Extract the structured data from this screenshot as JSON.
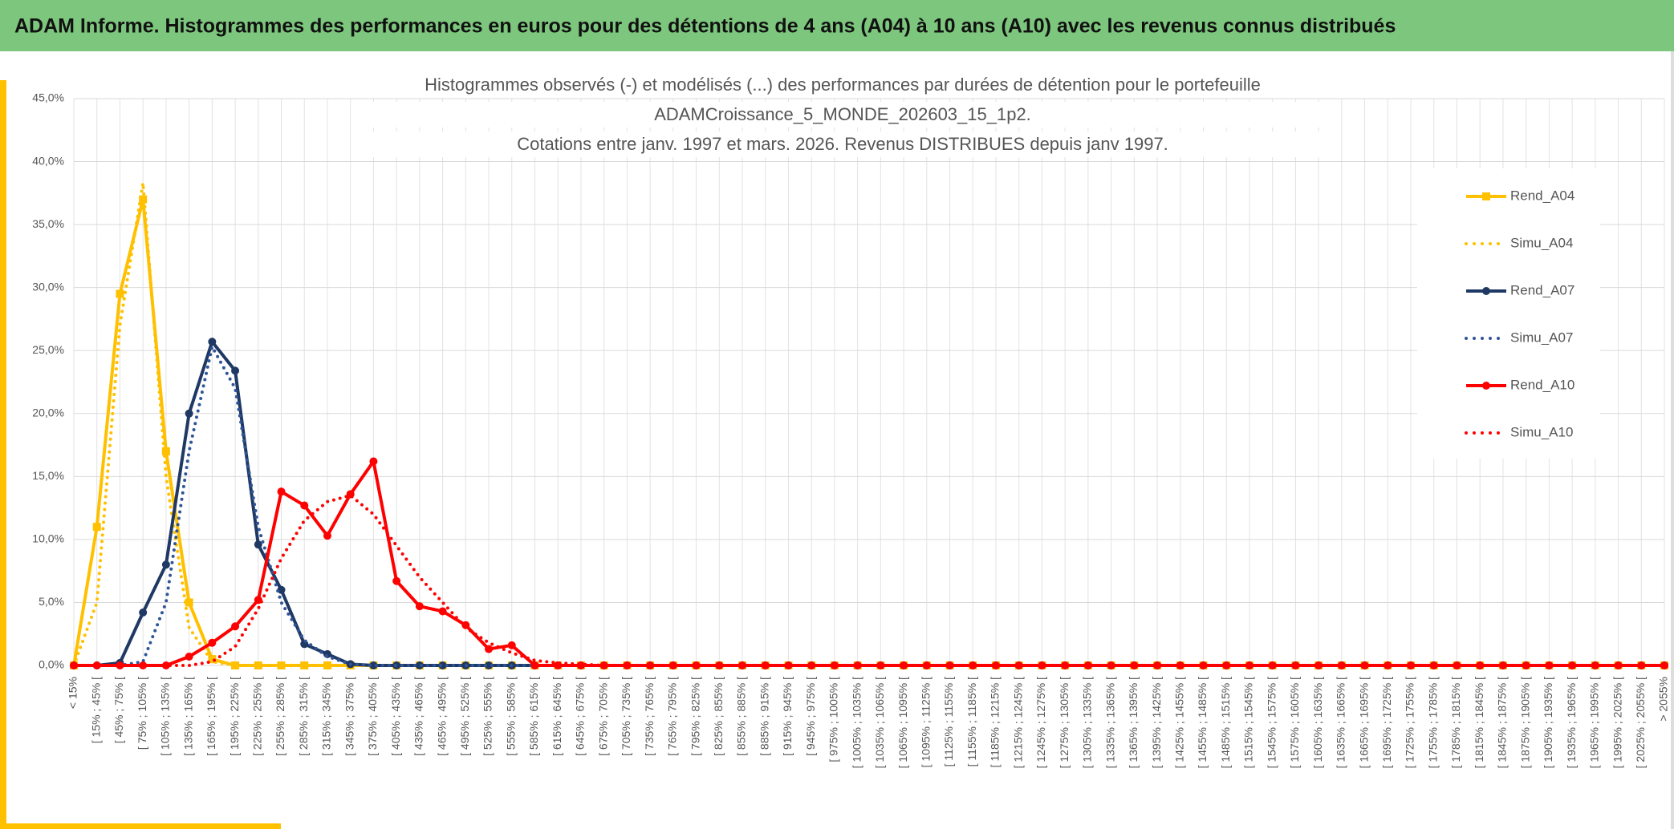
{
  "header": {
    "title": "ADAM Informe. Histogrammes des performances en euros pour des détentions de 4 ans (A04) à 10 ans (A10) avec les revenus connus distribués"
  },
  "chart_data": {
    "type": "line",
    "title": [
      "Histogrammes observés (-) et modélisés (...) des performances par durées de détention pour le portefeuille",
      "ADAMCroissance_5_MONDE_202603_15_1p2.",
      "Cotations entre janv. 1997 et mars. 2026. Revenus DISTRIBUES depuis janv 1997."
    ],
    "categories": [
      "< 15%",
      "[ 15% ; 45% [",
      "[ 45% ; 75% [",
      "[ 75% ; 105% [",
      "[ 105% ; 135% [",
      "[ 135% ; 165% [",
      "[ 165% ; 195% [",
      "[ 195% ; 225% [",
      "[ 225% ; 255% [",
      "[ 255% ; 285% [",
      "[ 285% ; 315% [",
      "[ 315% ; 345% [",
      "[ 345% ; 375% [",
      "[ 375% ; 405% [",
      "[ 405% ; 435% [",
      "[ 435% ; 465% [",
      "[ 465% ; 495% [",
      "[ 495% ; 525% [",
      "[ 525% ; 555% [",
      "[ 555% ; 585% [",
      "[ 585% ; 615% [",
      "[ 615% ; 645% [",
      "[ 645% ; 675% [",
      "[ 675% ; 705% [",
      "[ 705% ; 735% [",
      "[ 735% ; 765% [",
      "[ 765% ; 795% [",
      "[ 795% ; 825% [",
      "[ 825% ; 855% [",
      "[ 855% ; 885% [",
      "[ 885% ; 915% [",
      "[ 915% ; 945% [",
      "[ 945% ; 975% [",
      "[ 975% ; 1005% [",
      "[ 1005% ; 1035% [",
      "[ 1035% ; 1065% [",
      "[ 1065% ; 1095% [",
      "[ 1095% ; 1125% [",
      "[ 1125% ; 1155% [",
      "[ 1155% ; 1185% [",
      "[ 1185% ; 1215% [",
      "[ 1215% ; 1245% [",
      "[ 1245% ; 1275% [",
      "[ 1275% ; 1305% [",
      "[ 1305% ; 1335% [",
      "[ 1335% ; 1365% [",
      "[ 1365% ; 1395% [",
      "[ 1395% ; 1425% [",
      "[ 1425% ; 1455% [",
      "[ 1455% ; 1485% [",
      "[ 1485% ; 1515% [",
      "[ 1515% ; 1545% [",
      "[ 1545% ; 1575% [",
      "[ 1575% ; 1605% [",
      "[ 1605% ; 1635% [",
      "[ 1635% ; 1665% [",
      "[ 1665% ; 1695% [",
      "[ 1695% ; 1725% [",
      "[ 1725% ; 1755% [",
      "[ 1755% ; 1785% [",
      "[ 1785% ; 1815% [",
      "[ 1815% ; 1845% [",
      "[ 1845% ; 1875% [",
      "[ 1875% ; 1905% [",
      "[ 1905% ; 1935% [",
      "[ 1935% ; 1965% [",
      "[ 1965% ; 1995% [",
      "[ 1995% ; 2025% [",
      "[ 2025% ; 2055% [",
      "> 2055%"
    ],
    "series": [
      {
        "name": "Rend_A04",
        "color": "#ffc000",
        "line_style": "solid",
        "marker": "square",
        "values": [
          0,
          11,
          29.5,
          37,
          17,
          5,
          0.5,
          0,
          0,
          0,
          0,
          0,
          0,
          0,
          0,
          0,
          0,
          0,
          0,
          0,
          0,
          0,
          0,
          0,
          0,
          0,
          0,
          0,
          0,
          0,
          0,
          0,
          0,
          0,
          0,
          0,
          0,
          0,
          0,
          0,
          0,
          0,
          0,
          0,
          0,
          0,
          0,
          0,
          0,
          0,
          0,
          0,
          0,
          0,
          0,
          0,
          0,
          0,
          0,
          0,
          0,
          0,
          0,
          0,
          0,
          0,
          0,
          0,
          0,
          0
        ]
      },
      {
        "name": "Simu_A04",
        "color": "#ffc000",
        "line_style": "dotted",
        "marker": "none",
        "values": [
          0,
          5,
          27,
          38.3,
          15,
          3,
          0.3,
          0,
          0,
          0,
          0,
          0,
          0,
          0,
          0,
          0,
          0,
          0,
          0,
          0,
          0,
          0,
          0,
          0,
          0,
          0,
          0,
          0,
          0,
          0,
          0,
          0,
          0,
          0,
          0,
          0,
          0,
          0,
          0,
          0,
          0,
          0,
          0,
          0,
          0,
          0,
          0,
          0,
          0,
          0,
          0,
          0,
          0,
          0,
          0,
          0,
          0,
          0,
          0,
          0,
          0,
          0,
          0,
          0,
          0,
          0,
          0,
          0,
          0,
          0
        ]
      },
      {
        "name": "Rend_A07",
        "color": "#1f3864",
        "line_style": "solid",
        "marker": "circle",
        "values": [
          0,
          0,
          0.2,
          4.2,
          8,
          20,
          25.7,
          23.4,
          9.6,
          6,
          1.7,
          0.9,
          0.1,
          0,
          0,
          0,
          0,
          0,
          0,
          0,
          0,
          0,
          0,
          0,
          0,
          0,
          0,
          0,
          0,
          0,
          0,
          0,
          0,
          0,
          0,
          0,
          0,
          0,
          0,
          0,
          0,
          0,
          0,
          0,
          0,
          0,
          0,
          0,
          0,
          0,
          0,
          0,
          0,
          0,
          0,
          0,
          0,
          0,
          0,
          0,
          0,
          0,
          0,
          0,
          0,
          0,
          0,
          0,
          0,
          0
        ]
      },
      {
        "name": "Simu_A07",
        "color": "#2f5597",
        "line_style": "dotted",
        "marker": "none",
        "values": [
          0,
          0,
          0,
          0.3,
          5,
          17,
          25.3,
          22,
          11,
          5,
          2,
          0.7,
          0.1,
          0,
          0,
          0,
          0,
          0,
          0,
          0,
          0,
          0,
          0,
          0,
          0,
          0,
          0,
          0,
          0,
          0,
          0,
          0,
          0,
          0,
          0,
          0,
          0,
          0,
          0,
          0,
          0,
          0,
          0,
          0,
          0,
          0,
          0,
          0,
          0,
          0,
          0,
          0,
          0,
          0,
          0,
          0,
          0,
          0,
          0,
          0,
          0,
          0,
          0,
          0,
          0,
          0,
          0,
          0,
          0,
          0
        ]
      },
      {
        "name": "Rend_A10",
        "color": "#ff0000",
        "line_style": "solid",
        "marker": "circle",
        "values": [
          0,
          0,
          0,
          0,
          0,
          0.7,
          1.8,
          3.1,
          5.2,
          13.8,
          12.7,
          10.3,
          13.6,
          16.2,
          6.7,
          4.7,
          4.3,
          3.2,
          1.3,
          1.6,
          0,
          0,
          0,
          0,
          0,
          0,
          0,
          0,
          0,
          0,
          0,
          0,
          0,
          0,
          0,
          0,
          0,
          0,
          0,
          0,
          0,
          0,
          0,
          0,
          0,
          0,
          0,
          0,
          0,
          0,
          0,
          0,
          0,
          0,
          0,
          0,
          0,
          0,
          0,
          0,
          0,
          0,
          0,
          0,
          0,
          0,
          0,
          0,
          0,
          0
        ]
      },
      {
        "name": "Simu_A10",
        "color": "#ff0000",
        "line_style": "dotted",
        "marker": "none",
        "values": [
          0,
          0,
          0,
          0,
          0,
          0,
          0.3,
          1.5,
          4.5,
          8.5,
          11.5,
          13,
          13.5,
          12,
          9.5,
          7,
          5,
          3,
          1.8,
          1,
          0.4,
          0.2,
          0.1,
          0,
          0,
          0,
          0,
          0,
          0,
          0,
          0,
          0,
          0,
          0,
          0,
          0,
          0,
          0,
          0,
          0,
          0,
          0,
          0,
          0,
          0,
          0,
          0,
          0,
          0,
          0,
          0,
          0,
          0,
          0,
          0,
          0,
          0,
          0,
          0,
          0,
          0,
          0,
          0,
          0,
          0,
          0,
          0,
          0,
          0,
          0
        ]
      }
    ],
    "ylim": [
      0,
      45
    ],
    "yticks": [
      {
        "value": 0,
        "label": "0,0%"
      },
      {
        "value": 5,
        "label": "5,0%"
      },
      {
        "value": 10,
        "label": "10,0%"
      },
      {
        "value": 15,
        "label": "15,0%"
      },
      {
        "value": 20,
        "label": "20,0%"
      },
      {
        "value": 25,
        "label": "25,0%"
      },
      {
        "value": 30,
        "label": "30,0%"
      },
      {
        "value": 35,
        "label": "35,0%"
      },
      {
        "value": 40,
        "label": "40,0%"
      },
      {
        "value": 45,
        "label": "45,0%"
      }
    ],
    "grid": true,
    "legend": "right"
  }
}
